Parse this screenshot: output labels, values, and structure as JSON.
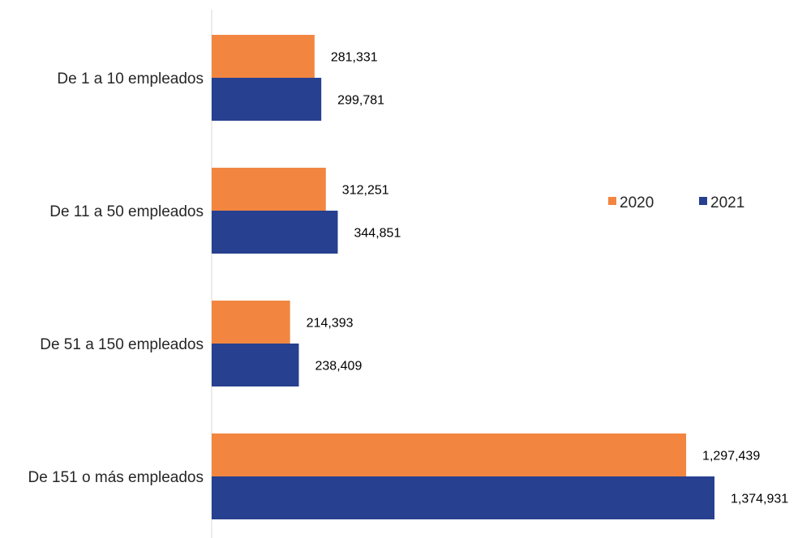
{
  "chart_data": {
    "type": "bar",
    "orientation": "horizontal",
    "title": "",
    "xlabel": "",
    "ylabel": "",
    "categories": [
      "De 1 a 10 empleados",
      "De 11 a 50 empleados",
      "De 51 a 150 empleados",
      "De 151 o más empleados"
    ],
    "series": [
      {
        "name": "2020",
        "color": "#F28641",
        "values": [
          281331,
          312251,
          214393,
          1297439
        ],
        "labels": [
          "281,331",
          "312,251",
          "214,393",
          "1,297,439"
        ]
      },
      {
        "name": "2021",
        "color": "#27408F",
        "values": [
          299781,
          344851,
          238409,
          1374931
        ],
        "labels": [
          "299,781",
          "344,851",
          "238,409",
          "1,374,931"
        ]
      }
    ],
    "xlim": [
      0,
      1400000
    ],
    "grid": false,
    "axis_visible": false,
    "legend_position": "right"
  }
}
